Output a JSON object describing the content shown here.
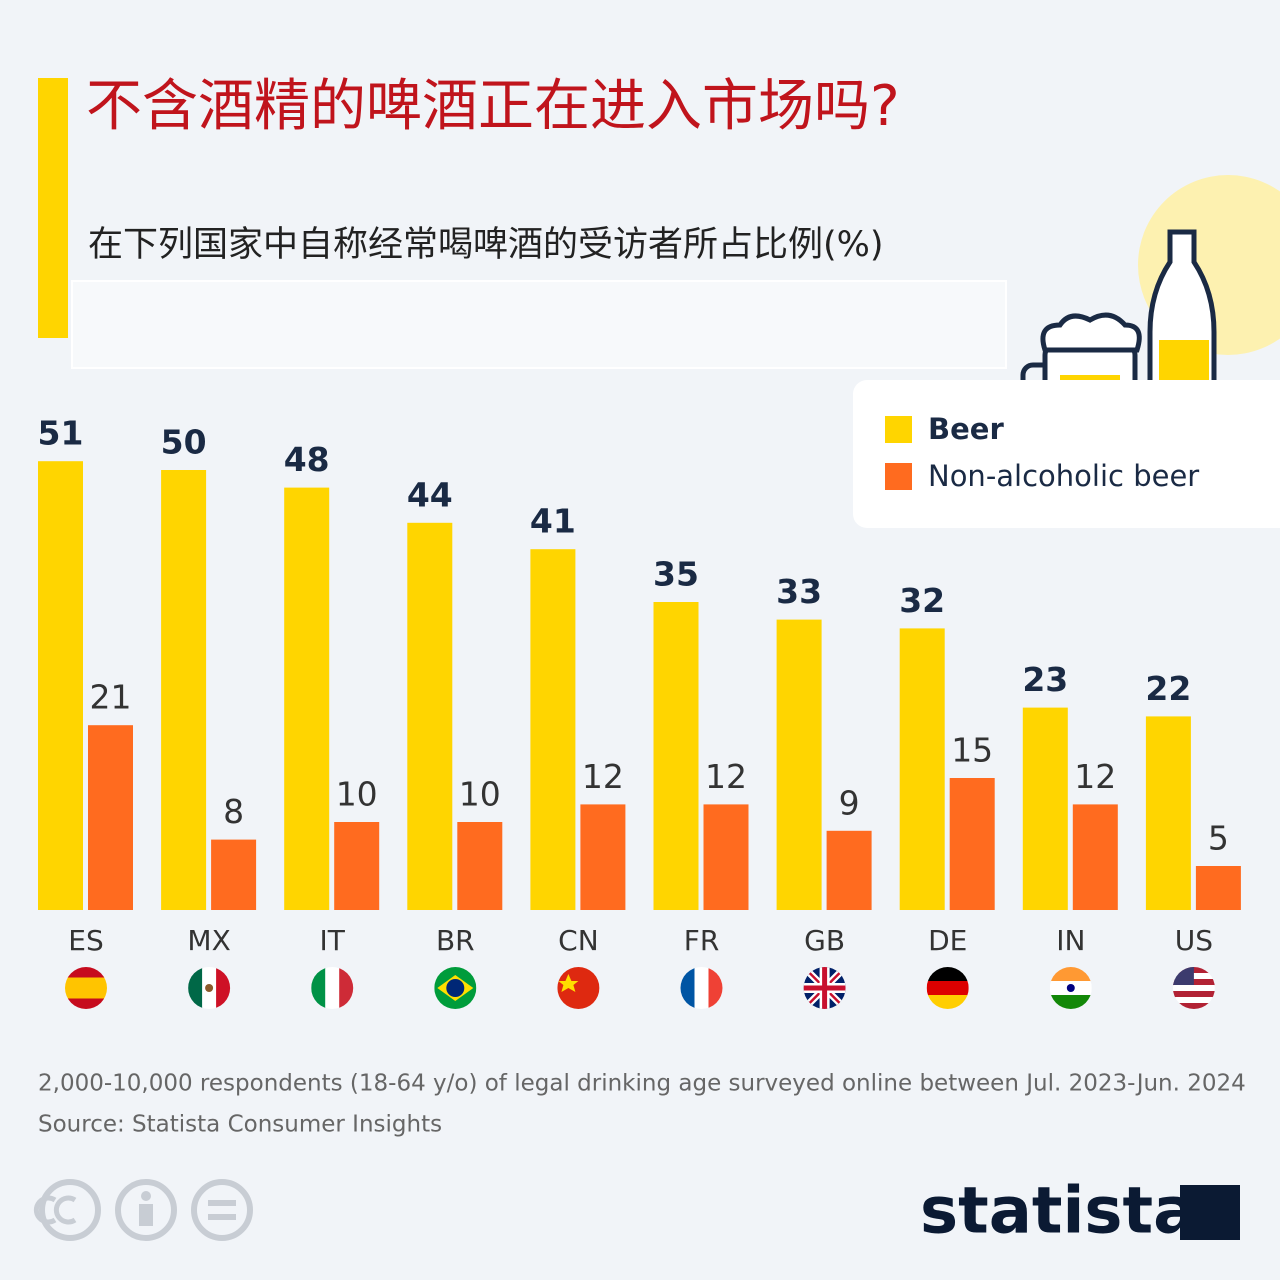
{
  "chart_data": {
    "type": "bar",
    "title": "不含酒精的啤酒正在进入市场吗?",
    "subtitle": "在下列国家中自称经常喝啤酒的受访者所占比例(%)",
    "categories": [
      "ES",
      "MX",
      "IT",
      "BR",
      "CN",
      "FR",
      "GB",
      "DE",
      "IN",
      "US"
    ],
    "series": [
      {
        "name": "Beer",
        "color": "#ffd500",
        "values": [
          51,
          50,
          48,
          44,
          41,
          35,
          33,
          32,
          23,
          22
        ]
      },
      {
        "name": "Non-alcoholic beer",
        "color": "#ff6b1f",
        "values": [
          21,
          8,
          10,
          10,
          12,
          12,
          9,
          15,
          12,
          5
        ]
      }
    ],
    "note": "2,000-10,000 respondents (18-64 y/o) of legal drinking age surveyed online between Jul. 2023-Jun. 2024",
    "source": "Source: Statista Consumer Insights",
    "logo": "statista"
  }
}
